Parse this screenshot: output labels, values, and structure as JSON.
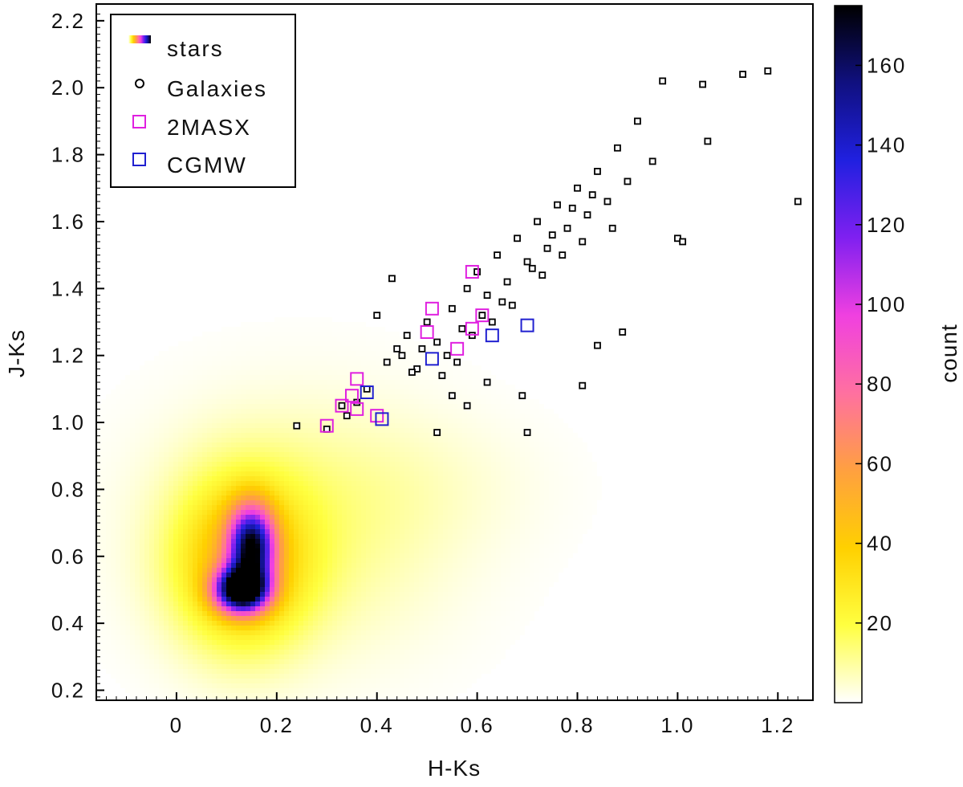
{
  "chart_data": {
    "type": "scatter",
    "xlabel": "H-Ks",
    "ylabel": "J-Ks",
    "xlim": [
      -0.16,
      1.27
    ],
    "ylim": [
      0.17,
      2.25
    ],
    "x_ticks": [
      0,
      0.2,
      0.4,
      0.6,
      0.8,
      1.0,
      1.2
    ],
    "x_tick_labels": [
      "0",
      "0.2",
      "0.4",
      "0.6",
      "0.8",
      "1.0",
      "1.2"
    ],
    "y_ticks": [
      0.2,
      0.4,
      0.6,
      0.8,
      1.0,
      1.2,
      1.4,
      1.6,
      1.8,
      2.0,
      2.2
    ],
    "y_tick_labels": [
      "0.2",
      "0.4",
      "0.6",
      "0.8",
      "1.0",
      "1.2",
      "1.4",
      "1.6",
      "1.8",
      "2.0",
      "2.2"
    ],
    "grid": false,
    "legend_position": "top-left",
    "legend": [
      {
        "label": "stars",
        "marker": "gradient"
      },
      {
        "label": "Galaxies",
        "marker": "small-square",
        "color": "#000000"
      },
      {
        "label": "2MASX",
        "marker": "open-square",
        "color": "#e020e0"
      },
      {
        "label": "CGMW",
        "marker": "open-square",
        "color": "#2020d0"
      }
    ],
    "colorbar": {
      "label": "count",
      "range": [
        0,
        175
      ],
      "ticks": [
        20,
        40,
        60,
        80,
        100,
        120,
        140,
        160
      ],
      "tick_labels": [
        "20",
        "40",
        "60",
        "80",
        "100",
        "120",
        "140",
        "160"
      ],
      "colors": [
        "#ffffff",
        "#ffff40",
        "#ffd000",
        "#ffa040",
        "#ff70a0",
        "#f040e0",
        "#8020f0",
        "#2020e0",
        "#101080",
        "#000000"
      ]
    },
    "series": [
      {
        "name": "stars",
        "kind": "density",
        "blobs": [
          {
            "cx": 0.13,
            "cy": 0.5,
            "sx": 0.035,
            "sy": 0.045,
            "peak": 175
          },
          {
            "cx": 0.15,
            "cy": 0.63,
            "sx": 0.03,
            "sy": 0.08,
            "peak": 130
          },
          {
            "cx": 0.13,
            "cy": 0.58,
            "sx": 0.09,
            "sy": 0.17,
            "peak": 45
          },
          {
            "cx": 0.25,
            "cy": 0.68,
            "sx": 0.2,
            "sy": 0.25,
            "peak": 12
          },
          {
            "cx": 0.48,
            "cy": 0.82,
            "sx": 0.18,
            "sy": 0.14,
            "peak": 3
          }
        ]
      },
      {
        "name": "Galaxies",
        "kind": "points",
        "x": [
          0.24,
          0.3,
          0.33,
          0.34,
          0.38,
          0.42,
          0.44,
          0.46,
          0.48,
          0.5,
          0.52,
          0.54,
          0.55,
          0.57,
          0.58,
          0.6,
          0.62,
          0.64,
          0.66,
          0.68,
          0.7,
          0.72,
          0.74,
          0.76,
          0.78,
          0.8,
          0.82,
          0.84,
          0.86,
          0.88,
          0.9,
          0.92,
          0.95,
          0.97,
          1.0,
          1.01,
          1.05,
          1.06,
          1.13,
          1.18,
          1.24,
          0.69,
          0.7,
          0.81,
          0.84,
          0.89,
          0.62,
          0.58,
          0.52,
          0.55,
          0.47,
          0.43,
          0.4,
          0.36,
          0.65,
          0.71,
          0.75,
          0.79,
          0.83,
          0.87,
          0.63,
          0.67,
          0.73,
          0.77,
          0.81,
          0.61,
          0.59,
          0.56,
          0.53,
          0.49,
          0.45
        ],
        "y": [
          0.99,
          0.98,
          1.05,
          1.02,
          1.1,
          1.18,
          1.22,
          1.26,
          1.16,
          1.3,
          1.24,
          1.2,
          1.34,
          1.28,
          1.4,
          1.45,
          1.38,
          1.5,
          1.42,
          1.55,
          1.48,
          1.6,
          1.52,
          1.65,
          1.58,
          1.7,
          1.62,
          1.75,
          1.66,
          1.82,
          1.72,
          1.9,
          1.78,
          2.02,
          1.55,
          1.54,
          2.01,
          1.84,
          2.04,
          2.05,
          1.66,
          1.08,
          0.97,
          1.11,
          1.23,
          1.27,
          1.12,
          1.05,
          0.97,
          1.08,
          1.15,
          1.43,
          1.32,
          1.06,
          1.36,
          1.46,
          1.56,
          1.64,
          1.68,
          1.58,
          1.3,
          1.35,
          1.44,
          1.5,
          1.54,
          1.32,
          1.26,
          1.18,
          1.14,
          1.22,
          1.2
        ]
      },
      {
        "name": "2MASX",
        "kind": "points",
        "x": [
          0.3,
          0.33,
          0.35,
          0.36,
          0.36,
          0.4,
          0.5,
          0.51,
          0.56,
          0.59,
          0.61,
          0.59
        ],
        "y": [
          0.99,
          1.05,
          1.08,
          1.13,
          1.04,
          1.02,
          1.27,
          1.34,
          1.22,
          1.45,
          1.32,
          1.28
        ]
      },
      {
        "name": "CGMW",
        "kind": "points",
        "x": [
          0.38,
          0.41,
          0.51,
          0.63,
          0.7
        ],
        "y": [
          1.09,
          1.01,
          1.19,
          1.26,
          1.29
        ]
      }
    ]
  }
}
